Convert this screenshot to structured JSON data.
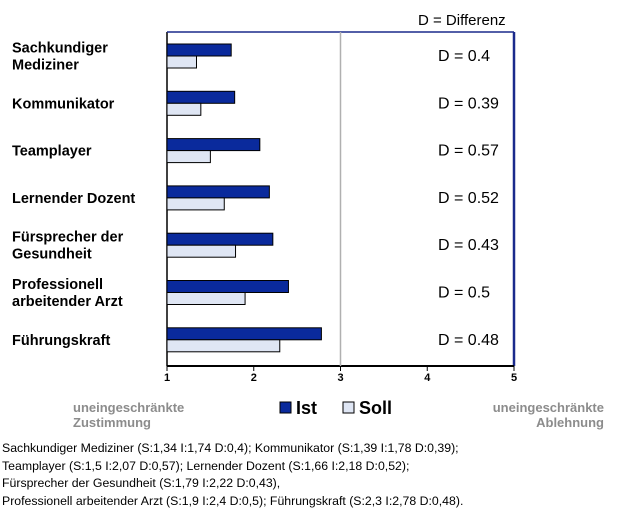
{
  "chart_data": {
    "type": "bar",
    "orientation": "horizontal",
    "categories": [
      [
        "Sachkundiger",
        "Mediziner"
      ],
      [
        "Kommunikator"
      ],
      [
        "Teamplayer"
      ],
      [
        "Lernender Dozent"
      ],
      [
        "Fürsprecher der",
        "Gesundheit"
      ],
      [
        "Professionell",
        "arbeitender Arzt"
      ],
      [
        "Führungskraft"
      ]
    ],
    "series": [
      {
        "name": "Ist",
        "values": [
          1.74,
          1.78,
          2.07,
          2.18,
          2.22,
          2.4,
          2.78
        ],
        "color": "#0a2a9c"
      },
      {
        "name": "Soll",
        "values": [
          1.34,
          1.39,
          1.5,
          1.66,
          1.79,
          1.9,
          2.3
        ],
        "color": "#dfe6f4"
      }
    ],
    "differences": [
      "D = 0.4",
      "D = 0.39",
      "D = 0.57",
      "D = 0.52",
      "D = 0.43",
      "D = 0.5",
      "D = 0.48"
    ],
    "difference_title": "D = Differenz",
    "xlim": [
      1,
      5
    ],
    "x_ticks": [
      "1",
      "2",
      "3",
      "4",
      "5"
    ],
    "reference_line": 3,
    "axis_left_label": [
      "uneingeschränkte",
      "Zustimmung"
    ],
    "axis_right_label": [
      "uneingeschränkte",
      "Ablehnung"
    ],
    "legend_placement": "bottom-center",
    "colors": {
      "frame": "#1a2a8c",
      "reference_line": "#b0b0b0"
    }
  },
  "caption": [
    "Sachkundiger Mediziner (S:1,34 I:1,74 D:0,4); Kommunikator (S:1,39 I:1,78 D:0,39);",
    "Teamplayer (S:1,5 I:2,07 D:0,57); Lernender Dozent (S:1,66 I:2,18 D:0,52);",
    "Fürsprecher der Gesundheit (S:1,79 I:2,22 D:0,43),",
    "Professionell arbeitender Arzt (S:1,9 I:2,4 D:0,5); Führungskraft (S:2,3 I:2,78 D:0,48)."
  ]
}
